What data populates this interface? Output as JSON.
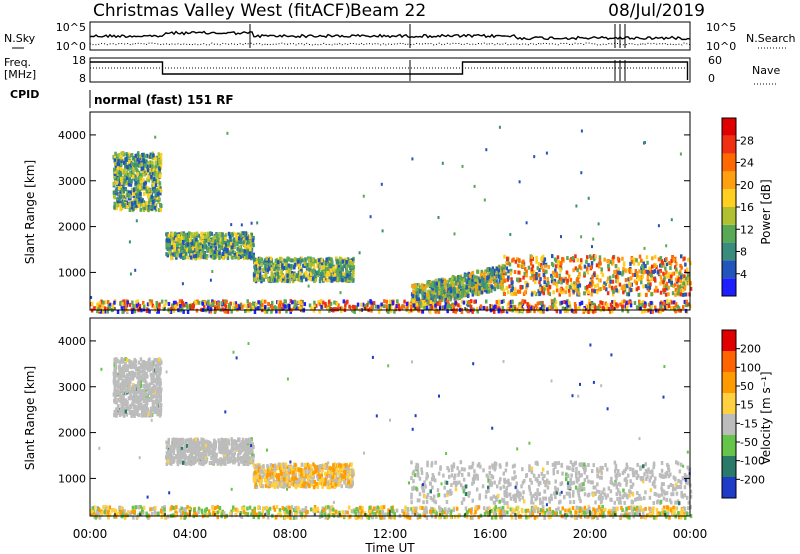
{
  "header": {
    "station": "Christmas Valley West (fitACF)",
    "beam": "Beam 22",
    "date": "08/Jul/2019"
  },
  "noise_panel": {
    "left_label": "N.Sky",
    "right_label": "N.Search",
    "left_ticks": [
      "10^5",
      "10^0"
    ],
    "right_ticks": [
      "10^5",
      "10^0"
    ]
  },
  "freq_panel": {
    "left_label_1": "Freq.",
    "left_label_2": "[MHz]",
    "left_ticks": [
      "18",
      "8"
    ],
    "right_label": "Nave",
    "right_ticks": [
      "60",
      "0"
    ]
  },
  "cpid": {
    "label": "CPID",
    "mode": "normal (fast) 151 RF"
  },
  "chart_data": [
    {
      "type": "heatmap",
      "name": "power",
      "xlabel": "",
      "ylabel": "Slant Range [km]",
      "ylim": [
        180,
        4500
      ],
      "yticks": [
        "1000",
        "2000",
        "3000",
        "4000"
      ],
      "xlim": [
        0,
        24
      ],
      "colorbar": {
        "label": "Power [dB]",
        "ticks": [
          "4",
          "8",
          "12",
          "16",
          "20",
          "24",
          "28"
        ],
        "range": [
          0,
          32
        ],
        "colors": [
          "#1e1eff",
          "#2255bb",
          "#3a8d7c",
          "#58a855",
          "#b0c030",
          "#ffd020",
          "#ffa010",
          "#ff6a00",
          "#f03010",
          "#e00000"
        ]
      },
      "features": [
        {
          "t": [
            0.9,
            2.8
          ],
          "range": [
            2400,
            3650
          ],
          "level": "mid"
        },
        {
          "t": [
            3.0,
            6.5
          ],
          "range": [
            1350,
            1900
          ],
          "level": "mid-high"
        },
        {
          "t": [
            6.5,
            10.5
          ],
          "range": [
            850,
            1350
          ],
          "level": "mid-high"
        },
        {
          "t": [
            12.8,
            16.5
          ],
          "range": [
            250,
            1200
          ],
          "level": "mixed"
        },
        {
          "t": [
            16.5,
            24.0
          ],
          "range": [
            550,
            1400
          ],
          "level": "high"
        },
        {
          "t": [
            0.0,
            24.0
          ],
          "range": [
            180,
            420
          ],
          "level": "ground"
        }
      ]
    },
    {
      "type": "heatmap",
      "name": "velocity",
      "xlabel": "Time UT",
      "ylabel": "Slant Range [km]",
      "ylim": [
        180,
        4500
      ],
      "yticks": [
        "1000",
        "2000",
        "3000",
        "4000"
      ],
      "xlim": [
        0,
        24
      ],
      "xticks": [
        "00:00",
        "04:00",
        "08:00",
        "12:00",
        "16:00",
        "20:00",
        "00:00"
      ],
      "colorbar": {
        "label": "Velocity [m s⁻¹]",
        "ticks": [
          "200",
          "100",
          "50",
          "15",
          "-15",
          "-50",
          "-100",
          "-200"
        ],
        "colors": [
          "#1e3cc8",
          "#2a7a6a",
          "#66c44a",
          "#bcbcbc",
          "#ffd040",
          "#ff9a00",
          "#ff6400",
          "#e00000"
        ]
      },
      "features": [
        {
          "t": [
            0.9,
            2.8
          ],
          "range": [
            2400,
            3650
          ],
          "level": "ground-scatter"
        },
        {
          "t": [
            3.0,
            6.5
          ],
          "range": [
            1350,
            1900
          ],
          "level": "ground-scatter"
        },
        {
          "t": [
            6.5,
            10.5
          ],
          "range": [
            850,
            1350
          ],
          "level": "positive-slow"
        },
        {
          "t": [
            12.8,
            24.0
          ],
          "range": [
            500,
            1400
          ],
          "level": "ground-scatter"
        },
        {
          "t": [
            0.0,
            24.0
          ],
          "range": [
            180,
            420
          ],
          "level": "negative-slow"
        }
      ]
    }
  ],
  "colors": {
    "axis": "#000000",
    "ground_scatter": "#bcbcbc"
  }
}
